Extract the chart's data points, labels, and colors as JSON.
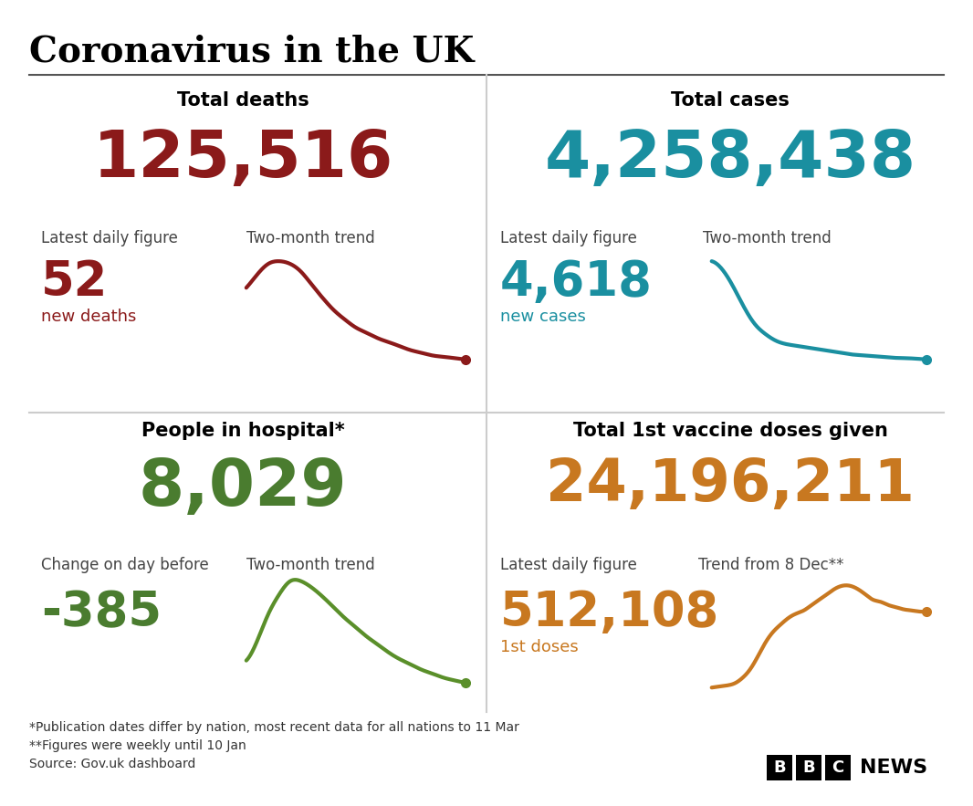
{
  "title": "Coronavirus in the UK",
  "bg_color": "#ffffff",
  "title_color": "#000000",
  "divider_color": "#aaaaaa",
  "quad_titles": [
    "Total deaths",
    "Total cases",
    "People in hospital*",
    "Total 1st vaccine doses given"
  ],
  "quad_title_color": "#000000",
  "big_numbers": [
    "125,516",
    "4,258,438",
    "8,029",
    "24,196,211"
  ],
  "big_number_colors": [
    "#8b1a1a",
    "#1a8fa0",
    "#4a7c2f",
    "#c87820"
  ],
  "label_left": [
    "Latest daily figure",
    "Latest daily figure",
    "Change on day before",
    "Latest daily figure"
  ],
  "label_right": [
    "Two-month trend",
    "Two-month trend",
    "Two-month trend",
    "Trend from 8 Dec**"
  ],
  "small_numbers": [
    "52",
    "4,618",
    "-385",
    "512,108"
  ],
  "small_number_colors": [
    "#8b1a1a",
    "#1a8fa0",
    "#4a7c2f",
    "#c87820"
  ],
  "small_labels": [
    "new deaths",
    "new cases",
    "",
    "1st doses"
  ],
  "small_label_colors": [
    "#8b1a1a",
    "#1a8fa0",
    "#4a7c2f",
    "#c87820"
  ],
  "footnote1": "*Publication dates differ by nation, most recent data for all nations to 11 Mar",
  "footnote2": "**Figures were weekly until 10 Jan",
  "footnote3": "Source: Gov.uk dashboard",
  "deaths_trend_x": [
    0,
    0.5,
    1,
    1.5,
    2,
    2.5,
    3,
    3.5,
    4,
    4.5,
    5,
    5.5,
    6,
    6.5,
    7,
    7.5,
    8,
    8.5,
    9,
    9.5,
    10
  ],
  "deaths_trend_y": [
    8.0,
    9.0,
    9.8,
    10.0,
    9.8,
    9.2,
    8.2,
    7.2,
    6.3,
    5.6,
    5.0,
    4.6,
    4.2,
    3.9,
    3.6,
    3.3,
    3.1,
    2.9,
    2.8,
    2.7,
    2.6
  ],
  "deaths_trend_color": "#8b1a1a",
  "cases_trend_x": [
    0,
    0.5,
    1,
    1.5,
    2,
    2.5,
    3,
    3.5,
    4,
    4.5,
    5,
    5.5,
    6,
    6.5,
    7,
    7.5,
    8,
    8.5,
    9,
    9.5,
    10
  ],
  "cases_trend_y": [
    9.5,
    9.0,
    8.0,
    6.8,
    5.8,
    5.2,
    4.8,
    4.6,
    4.5,
    4.4,
    4.3,
    4.2,
    4.1,
    4.0,
    3.95,
    3.9,
    3.85,
    3.8,
    3.78,
    3.75,
    3.7
  ],
  "cases_trend_color": "#1a8fa0",
  "hospital_trend_x": [
    0,
    0.5,
    1,
    1.5,
    2,
    2.5,
    3,
    3.5,
    4,
    4.5,
    5,
    5.5,
    6,
    6.5,
    7,
    7.5,
    8,
    8.5,
    9,
    9.5,
    10
  ],
  "hospital_trend_y": [
    4.0,
    5.5,
    7.5,
    9.0,
    10.0,
    10.0,
    9.5,
    8.8,
    8.0,
    7.2,
    6.5,
    5.8,
    5.2,
    4.6,
    4.1,
    3.7,
    3.3,
    3.0,
    2.7,
    2.5,
    2.3
  ],
  "hospital_trend_color": "#5a8f2a",
  "vaccine_trend_x": [
    0,
    0.5,
    1,
    1.5,
    2,
    2.5,
    3,
    3.5,
    4,
    4.5,
    5,
    5.5,
    6,
    6.5,
    7,
    7.5,
    8,
    8.5,
    9,
    9.5,
    10,
    10.5,
    11,
    11.5,
    12,
    12.5,
    13,
    13.5,
    14
  ],
  "vaccine_trend_y": [
    0.3,
    0.4,
    0.5,
    0.7,
    1.2,
    2.0,
    3.2,
    4.5,
    5.5,
    6.2,
    6.8,
    7.2,
    7.5,
    8.0,
    8.5,
    9.0,
    9.5,
    9.8,
    9.8,
    9.5,
    9.0,
    8.5,
    8.3,
    8.0,
    7.8,
    7.6,
    7.5,
    7.4,
    7.4
  ],
  "vaccine_trend_color": "#c87820",
  "title_font": "serif",
  "label_font": "sans-serif"
}
